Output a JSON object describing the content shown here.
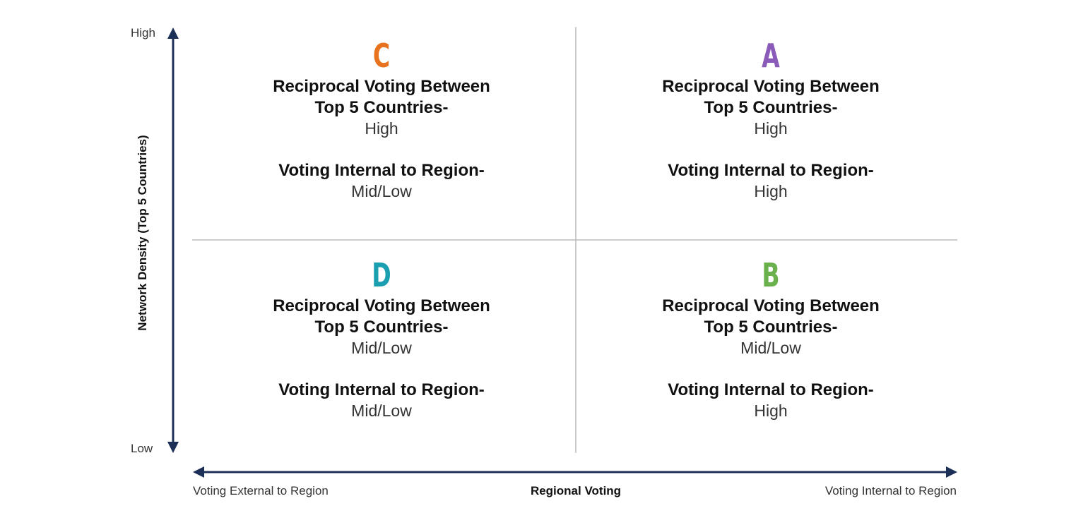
{
  "y_axis": {
    "title": "Network Density (Top 5 Countries)",
    "top_label": "High",
    "bottom_label": "Low"
  },
  "x_axis": {
    "title": "Regional Voting",
    "left_label": "Voting External to Region",
    "right_label": "Voting Internal to Region"
  },
  "colors": {
    "axis": "#1b2f57",
    "divider": "#bbbbbb",
    "C": "#e8731f",
    "A": "#8a5bb8",
    "D": "#1a9fb0",
    "B": "#6ab04c"
  },
  "quadrants": {
    "C": {
      "letter": "C",
      "heading1_line1": "Reciprocal Voting Between",
      "heading1_line2": "Top 5 Countries-",
      "value1": "High",
      "heading2": "Voting Internal to Region-",
      "value2": "Mid/Low"
    },
    "A": {
      "letter": "A",
      "heading1_line1": "Reciprocal Voting Between",
      "heading1_line2": "Top 5 Countries-",
      "value1": "High",
      "heading2": "Voting Internal to Region-",
      "value2": "High"
    },
    "D": {
      "letter": "D",
      "heading1_line1": "Reciprocal Voting Between",
      "heading1_line2": "Top 5 Countries-",
      "value1": "Mid/Low",
      "heading2": "Voting Internal to Region-",
      "value2": "Mid/Low"
    },
    "B": {
      "letter": "B",
      "heading1_line1": "Reciprocal Voting Between",
      "heading1_line2": "Top 5 Countries-",
      "value1": "Mid/Low",
      "heading2": "Voting Internal to Region-",
      "value2": "High"
    }
  }
}
